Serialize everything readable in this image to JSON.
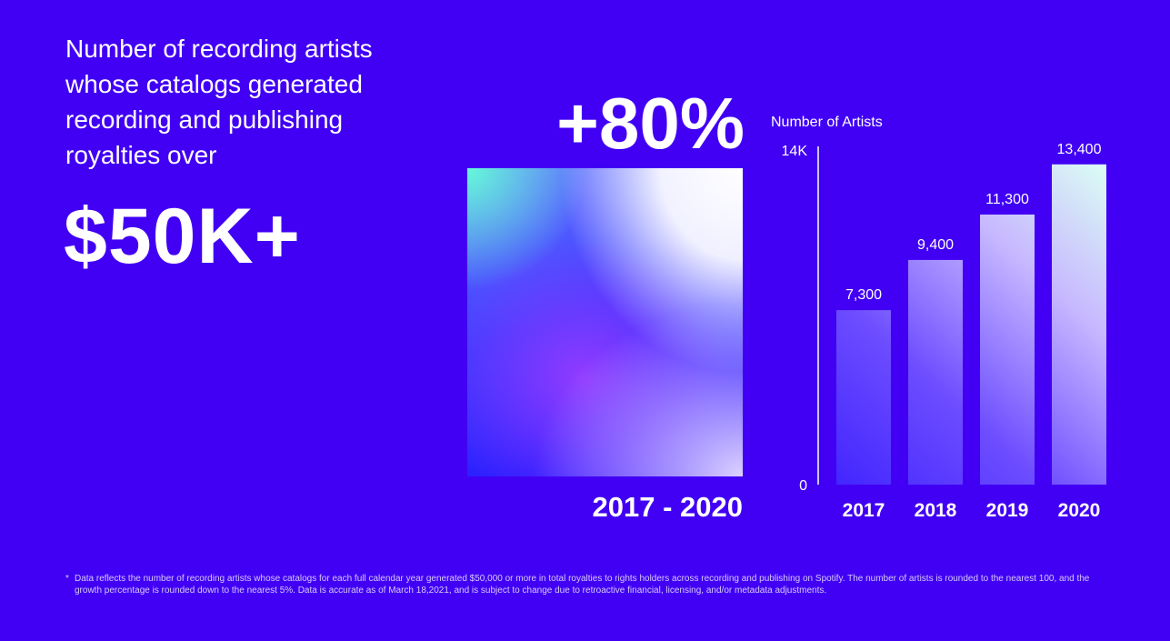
{
  "headline": "Number of recording artists whose catalogs generated recording and publishing royalties over",
  "amount": "$50K+",
  "growth": {
    "value": "+80%",
    "period": "2017 - 2020"
  },
  "colors": {
    "background": "#4100f4",
    "text": "#ffffff"
  },
  "chart_data": {
    "type": "bar",
    "ylabel": "Number of Artists",
    "ylim": [
      0,
      14000
    ],
    "yticks": [
      {
        "value": 0,
        "label": "0"
      },
      {
        "value": 14000,
        "label": "14K"
      }
    ],
    "categories": [
      "2017",
      "2018",
      "2019",
      "2020"
    ],
    "values": [
      7300,
      9400,
      11300,
      13400
    ],
    "value_labels": [
      "7,300",
      "9,400",
      "11,300",
      "13,400"
    ],
    "grid": false,
    "legend": "none"
  },
  "footnote": {
    "marker": "*",
    "text": "Data reflects the number of recording artists whose catalogs for each full calendar year generated $50,000 or more in total royalties to rights holders across recording and publishing on Spotify. The number of artists is rounded to the nearest 100, and the growth percentage is rounded down to the nearest 5%. Data is accurate as of March 18,2021, and is subject to change due to retroactive financial, licensing, and/or metadata adjustments."
  }
}
